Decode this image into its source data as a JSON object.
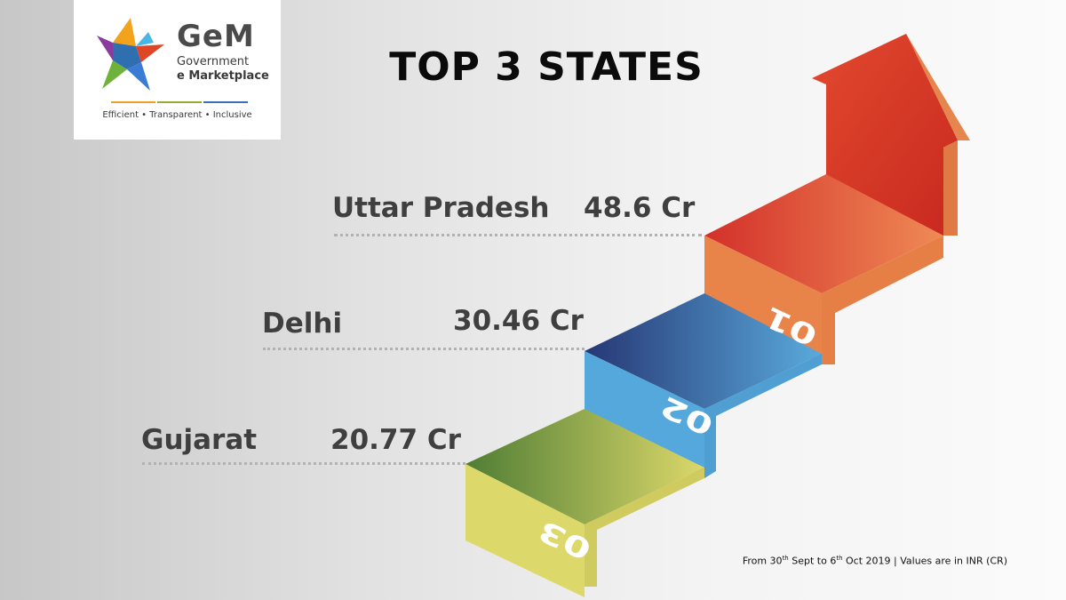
{
  "logo": {
    "name": "GeM",
    "line1": "Government",
    "line2": "e Marketplace",
    "tagline": "Efficient • Transparent • Inclusive"
  },
  "title": "TOP 3 STATES",
  "states": [
    {
      "rank": "01",
      "name": "Uttar Pradesh",
      "value": "48.6 Cr"
    },
    {
      "rank": "02",
      "name": "Delhi",
      "value": "30.46 Cr"
    },
    {
      "rank": "03",
      "name": "Gujarat",
      "value": "20.77 Cr"
    }
  ],
  "footnote": {
    "from_prefix": "From 30",
    "from_sup": "th",
    "mid": " Sept to 6",
    "to_sup": "th",
    "suffix": " Oct 2019 | Values are in INR (CR)"
  },
  "colors": {
    "red": "#d9342b",
    "orange": "#e8834a",
    "blue": "#55a8dc",
    "navy": "#2a3b7d",
    "yellow": "#dcd86a",
    "green": "#5f8a3a"
  },
  "icons": {
    "logo": "gem-star-logo-icon"
  }
}
